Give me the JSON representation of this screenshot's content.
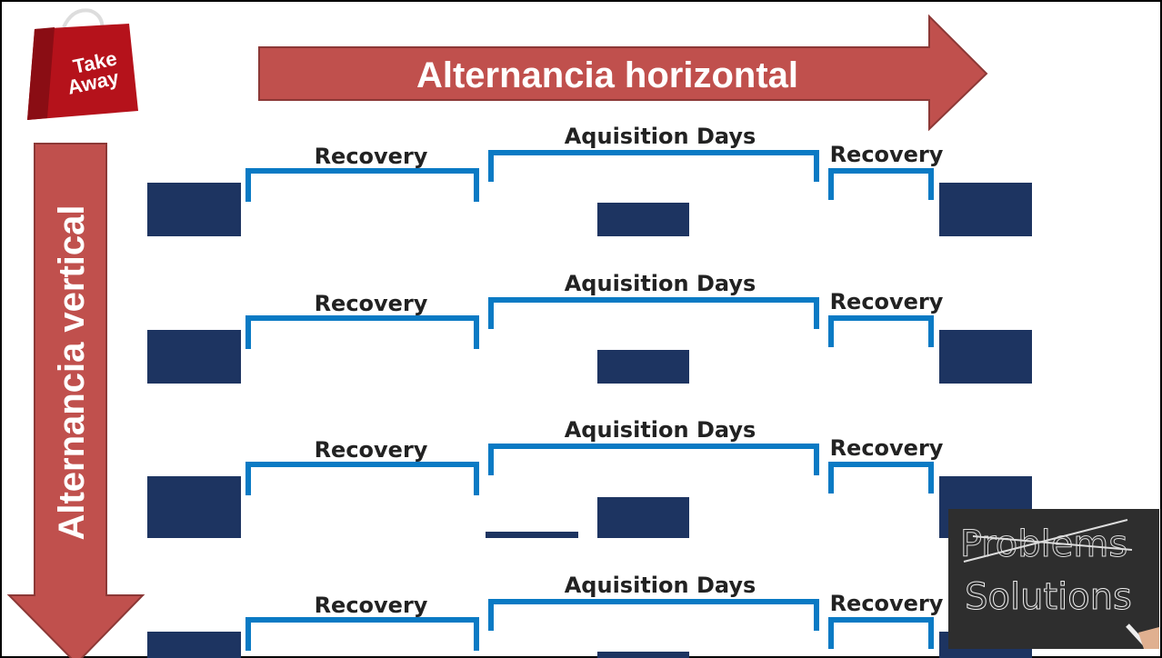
{
  "badge": {
    "line1": "Take",
    "line2": "Away"
  },
  "arrows": {
    "horizontal": "Alternancia horizontal",
    "vertical": "Alternancia vertical"
  },
  "rows": [
    {
      "recovery_left": "Recovery",
      "acquisition": "Aquisition Days",
      "recovery_right": "Recovery"
    },
    {
      "recovery_left": "Recovery",
      "acquisition": "Aquisition Days",
      "recovery_right": "Recovery"
    },
    {
      "recovery_left": "Recovery",
      "acquisition": "Aquisition Days",
      "recovery_right": "Recovery"
    },
    {
      "recovery_left": "Recovery",
      "acquisition": "Aquisition Days",
      "recovery_right": "Recovery"
    }
  ],
  "chalkboard": {
    "crossed": "Problems",
    "text": "Solutions"
  }
}
